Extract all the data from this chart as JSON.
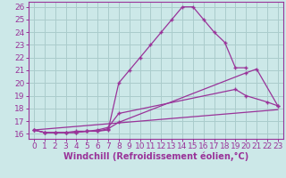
{
  "title": "",
  "xlabel": "Windchill (Refroidissement éolien,°C)",
  "bg_color": "#cce8e8",
  "grid_color": "#aacccc",
  "line_color": "#993399",
  "ylim": [
    15.6,
    26.4
  ],
  "xlim": [
    -0.5,
    23.5
  ],
  "x_ticks": [
    0,
    1,
    2,
    3,
    4,
    5,
    6,
    7,
    8,
    9,
    10,
    11,
    12,
    13,
    14,
    15,
    16,
    17,
    18,
    19,
    20,
    21,
    22,
    23
  ],
  "y_ticks": [
    16,
    17,
    18,
    19,
    20,
    21,
    22,
    23,
    24,
    25,
    26
  ],
  "line1_x": [
    0,
    1,
    2,
    3,
    4,
    5,
    6,
    7,
    8,
    9,
    10,
    11,
    12,
    13,
    14,
    15,
    16,
    17,
    18,
    19,
    20
  ],
  "line1_y": [
    16.3,
    16.1,
    16.1,
    16.1,
    16.1,
    16.2,
    16.2,
    16.3,
    20.0,
    21.0,
    22.0,
    23.0,
    24.0,
    25.0,
    26.0,
    26.0,
    25.0,
    24.0,
    23.2,
    21.2,
    21.2
  ],
  "line2_x": [
    0,
    1,
    2,
    3,
    4,
    5,
    6,
    7,
    8,
    19,
    20,
    22,
    23
  ],
  "line2_y": [
    16.3,
    16.1,
    16.1,
    16.1,
    16.2,
    16.2,
    16.3,
    16.5,
    17.6,
    19.5,
    19.0,
    18.5,
    18.2
  ],
  "line3_x": [
    0,
    1,
    2,
    3,
    4,
    5,
    6,
    7,
    8,
    20,
    21,
    23
  ],
  "line3_y": [
    16.3,
    16.1,
    16.1,
    16.1,
    16.1,
    16.2,
    16.2,
    16.4,
    16.9,
    20.8,
    21.1,
    18.2
  ],
  "line4_x": [
    0,
    23
  ],
  "line4_y": [
    16.3,
    17.9
  ],
  "tick_fontsize": 6.5,
  "label_fontsize": 7,
  "marker_size": 3.5,
  "linewidth": 0.9
}
